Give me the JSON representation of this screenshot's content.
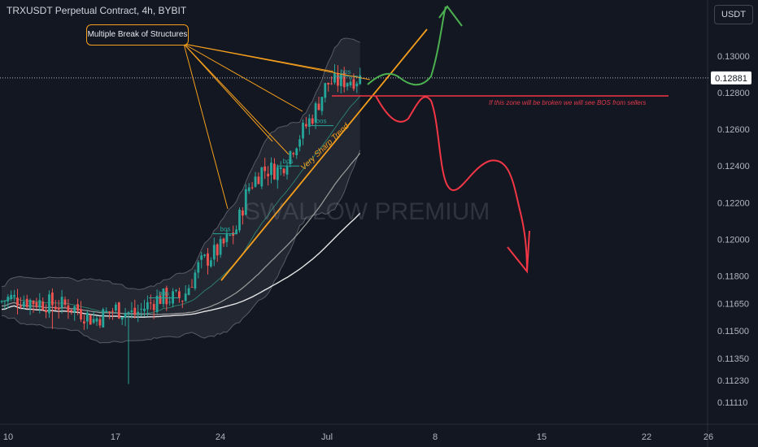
{
  "header": {
    "title": "TRXUSDT Perpetual Contract, 4h, BYBIT",
    "currency": "USDT"
  },
  "watermark": "SWALLOW PREMIUM",
  "annotations": {
    "callout": "Multiple Break of Structures",
    "trend_label": "Very Sharp Trend",
    "zone_note": "If this zone will be broken we will see BOS from sellers",
    "bos_label": "bos"
  },
  "colors": {
    "background": "#131722",
    "bull": "#26a69a",
    "bear": "#ef5350",
    "accent_orange": "#f59f1c",
    "projection_up": "#4caf50",
    "projection_down": "#f23645",
    "price_tag": "#ffffff"
  },
  "chart_data": {
    "type": "candlestick",
    "title": "TRXUSDT Perpetual Contract, 4h, BYBIT",
    "x_ticks": [
      "10",
      "17",
      "24",
      "Jul",
      "8",
      "15",
      "22",
      "26"
    ],
    "y_ticks": [
      "0.13000",
      "0.12800",
      "0.12600",
      "0.12400",
      "0.12200",
      "0.12000",
      "0.11800",
      "0.11650",
      "0.11500",
      "0.11350",
      "0.11230",
      "0.11110"
    ],
    "last_price": "0.12881",
    "key_level": 0.1276,
    "grid": false,
    "path_samples": [
      {
        "x": "early Jun",
        "close": 0.1166
      },
      {
        "x": "10",
        "close": 0.1168
      },
      {
        "x": "13",
        "close": 0.1163
      },
      {
        "x": "15",
        "close": 0.1156
      },
      {
        "x": "17",
        "close": 0.1162
      },
      {
        "x": "18",
        "close": 0.1159
      },
      {
        "x": "20",
        "close": 0.1168
      },
      {
        "x": "22",
        "close": 0.1168
      },
      {
        "x": "23",
        "close": 0.1186
      },
      {
        "x": "24",
        "close": 0.1195
      },
      {
        "x": "25",
        "close": 0.1205
      },
      {
        "x": "26",
        "close": 0.1228
      },
      {
        "x": "27",
        "close": 0.1238
      },
      {
        "x": "28",
        "close": 0.1238
      },
      {
        "x": "29",
        "close": 0.1252
      },
      {
        "x": "30",
        "close": 0.1268
      },
      {
        "x": "Jul",
        "close": 0.1285
      },
      {
        "x": "2",
        "close": 0.1288
      }
    ],
    "bos_levels": [
      0.1168,
      0.1203,
      0.124,
      0.1262,
      0.1289
    ],
    "projection_up": [
      0.1287,
      0.1284,
      0.1304,
      0.1318
    ],
    "projection_down": [
      0.1276,
      0.1264,
      0.1279,
      0.1222,
      0.1238,
      0.1178
    ]
  }
}
